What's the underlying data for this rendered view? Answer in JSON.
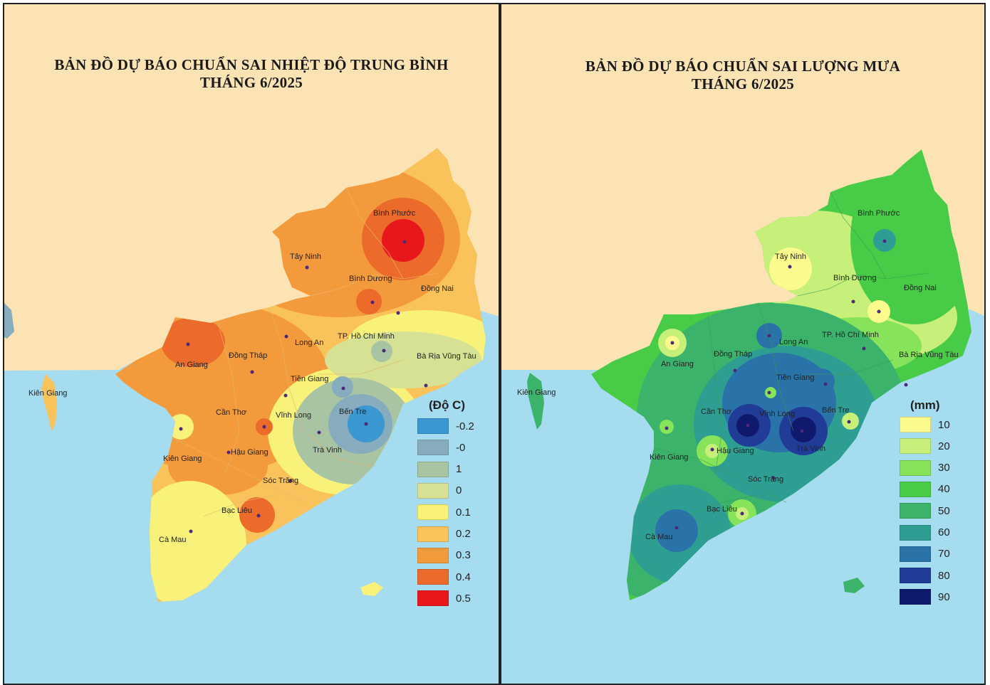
{
  "colors": {
    "land_bg": "#fbe3b4",
    "sea": "#a6dcf0",
    "marker": "#4b2a78",
    "temp_base": "#f3a245",
    "rain_base": "#4cc94c"
  },
  "temperature_map": {
    "title_line1": "BẢN ĐỒ DỰ BÁO CHUẨN SAI NHIỆT ĐỘ TRUNG BÌNH",
    "title_line2": "THÁNG 6/2025",
    "legend": {
      "title": "(Độ C)",
      "items": [
        {
          "label": "-0.2",
          "color": "#3a97d0"
        },
        {
          "label": "-0",
          "color": "#86acbd"
        },
        {
          "label": "1",
          "color": "#a8c4a2"
        },
        {
          "label": "0",
          "color": "#d6e194"
        },
        {
          "label": "0.1",
          "color": "#f8f27a"
        },
        {
          "label": "0.2",
          "color": "#f9c25a"
        },
        {
          "label": "0.3",
          "color": "#f39a3c"
        },
        {
          "label": "0.4",
          "color": "#ec6a2a"
        },
        {
          "label": "0.5",
          "color": "#e8171c"
        }
      ]
    },
    "places": [
      "Bình Phước",
      "Tây Ninh",
      "Bình Dương",
      "Đồng Nai",
      "Long An",
      "TP. Hồ Chí Minh",
      "An Giang",
      "Đồng Tháp",
      "Bà Rịa Vũng Tàu",
      "Kiên Giang",
      "Tiền Giang",
      "Cần Thơ",
      "Vĩnh Long",
      "Bến Tre",
      "Hậu Giang",
      "Trà Vinh",
      "Kiên Giang",
      "Sóc Trăng",
      "Bạc Liêu",
      "Cà Mau"
    ]
  },
  "rainfall_map": {
    "title_line1": "BẢN ĐỒ DỰ BÁO CHUẨN SAI LƯỢNG MƯA",
    "title_line2": "THÁNG 6/2025",
    "legend": {
      "title": "(mm)",
      "items": [
        {
          "label": "10",
          "color": "#fbfa8c"
        },
        {
          "label": "20",
          "color": "#c6f07a"
        },
        {
          "label": "30",
          "color": "#86e35a"
        },
        {
          "label": "40",
          "color": "#48cc48"
        },
        {
          "label": "50",
          "color": "#3cb36a"
        },
        {
          "label": "60",
          "color": "#2f9e92"
        },
        {
          "label": "70",
          "color": "#2a73a8"
        },
        {
          "label": "80",
          "color": "#213c96"
        },
        {
          "label": "90",
          "color": "#101a6c"
        }
      ]
    },
    "places": [
      "Bình Phước",
      "Tây Ninh",
      "Bình Dương",
      "Đồng Nai",
      "Long An",
      "TP. Hồ Chí Minh",
      "An Giang",
      "Đồng Tháp",
      "Bà Rịa Vũng Tàu",
      "Kiên Giang",
      "Tiền Giang",
      "Cần Thơ",
      "Vĩnh Long",
      "Bến Tre",
      "Hậu Giang",
      "Trà Vinh",
      "Kiên Giang",
      "Sóc Trăng",
      "Bạc Liêu",
      "Cà Mau"
    ]
  }
}
